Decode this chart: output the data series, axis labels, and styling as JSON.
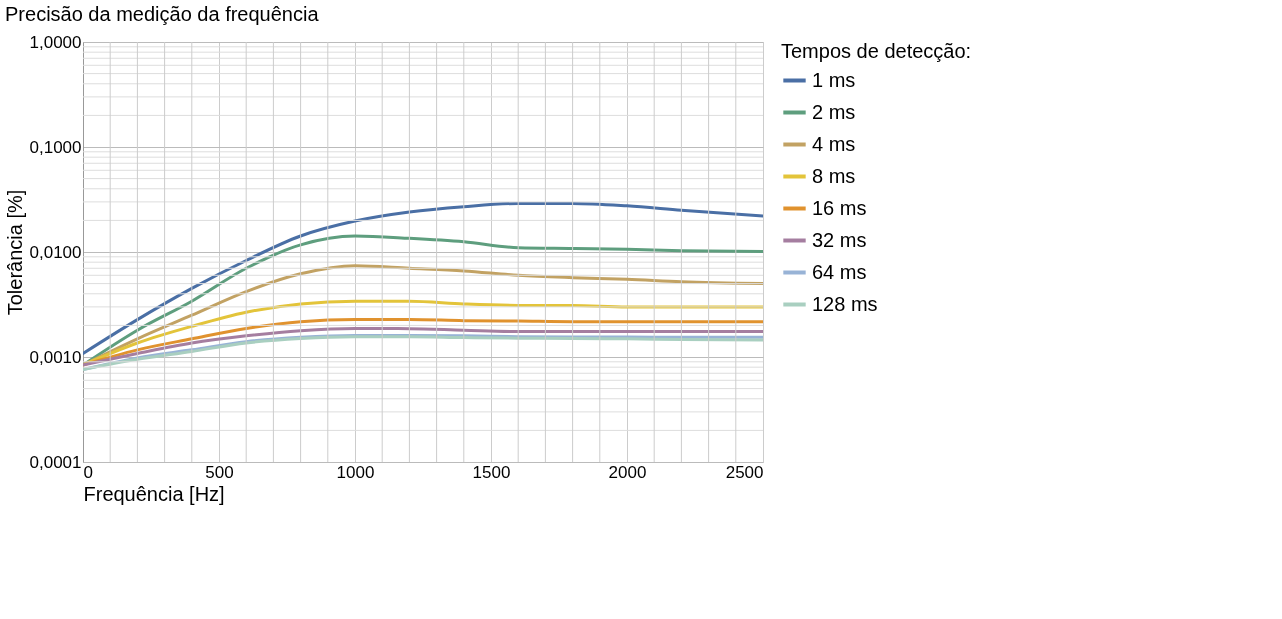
{
  "chart_data": {
    "type": "line",
    "title": "Precisão da medição da frequência",
    "xlabel": "Frequência [Hz]",
    "ylabel": "Tolerância [%]",
    "legend_title": "Tempos de detecção:",
    "x": [
      0,
      200,
      400,
      600,
      800,
      1000,
      1200,
      1400,
      1600,
      1800,
      2000,
      2200,
      2500
    ],
    "series": [
      {
        "name": "1 ms",
        "color": "#4a6fa5",
        "values": [
          0.00108,
          0.00227,
          0.0045,
          0.0083,
          0.0142,
          0.0197,
          0.024,
          0.027,
          0.029,
          0.029,
          0.0275,
          0.025,
          0.022
        ]
      },
      {
        "name": "2 ms",
        "color": "#5e9e7e",
        "values": [
          0.00084,
          0.0018,
          0.0034,
          0.007,
          0.0117,
          0.0142,
          0.0135,
          0.0125,
          0.011,
          0.0108,
          0.0106,
          0.0103,
          0.0101
        ]
      },
      {
        "name": "4 ms",
        "color": "#c2a263",
        "values": [
          0.00084,
          0.00149,
          0.0025,
          0.0042,
          0.0062,
          0.0074,
          0.007,
          0.0066,
          0.006,
          0.0057,
          0.0055,
          0.0052,
          0.005
        ]
      },
      {
        "name": "8 ms",
        "color": "#e3c43a",
        "values": [
          0.00084,
          0.00136,
          0.00196,
          0.00267,
          0.0032,
          0.0034,
          0.0034,
          0.0032,
          0.0031,
          0.0031,
          0.003,
          0.003,
          0.003
        ]
      },
      {
        "name": "16 ms",
        "color": "#e0922e",
        "values": [
          0.00084,
          0.00117,
          0.00149,
          0.00187,
          0.00217,
          0.00228,
          0.00228,
          0.00222,
          0.0022,
          0.00217,
          0.00217,
          0.00217,
          0.00217
        ]
      },
      {
        "name": "32 ms",
        "color": "#a57ea0",
        "values": [
          0.00084,
          0.00108,
          0.00136,
          0.00159,
          0.00178,
          0.00187,
          0.00186,
          0.0018,
          0.00175,
          0.00175,
          0.00175,
          0.00175,
          0.00175
        ]
      },
      {
        "name": "64 ms",
        "color": "#98b3d6",
        "values": [
          0.00076,
          0.00098,
          0.00117,
          0.0014,
          0.00154,
          0.0016,
          0.0016,
          0.00159,
          0.00156,
          0.00155,
          0.00155,
          0.00154,
          0.00154
        ]
      },
      {
        "name": "128 ms",
        "color": "#a9cfc0",
        "values": [
          0.00076,
          0.00095,
          0.00113,
          0.00136,
          0.0015,
          0.00156,
          0.00156,
          0.00153,
          0.00151,
          0.0015,
          0.00149,
          0.00147,
          0.00145
        ]
      }
    ],
    "xlim": [
      0,
      2500
    ],
    "xticks": [
      0,
      500,
      1000,
      1500,
      2000,
      2500
    ],
    "ylim": [
      0.0001,
      1
    ],
    "log": true,
    "yticks": [
      {
        "value": 0.0001,
        "label": "0,0001"
      },
      {
        "value": 0.001,
        "label": "0,0010"
      },
      {
        "value": 0.01,
        "label": "0,0100"
      },
      {
        "value": 0.1,
        "label": "0,1000"
      },
      {
        "value": 1,
        "label": "1,0000"
      }
    ],
    "grid": true,
    "legend": "right",
    "marker": "none",
    "line_style": "solid"
  }
}
